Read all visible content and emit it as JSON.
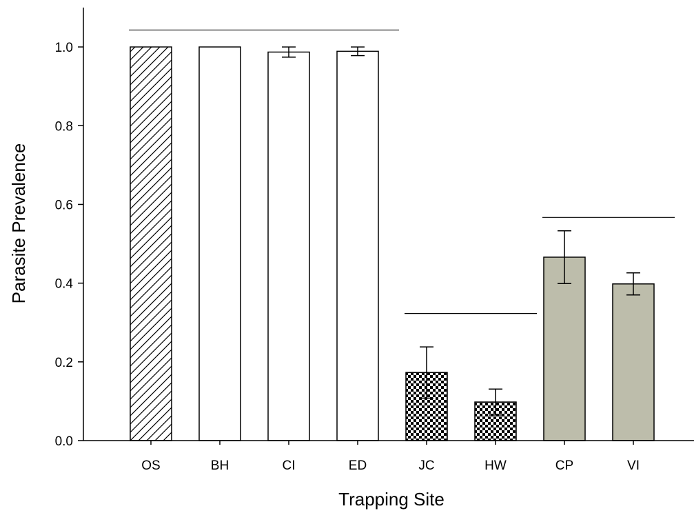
{
  "chart_data": {
    "type": "bar",
    "title": "",
    "xlabel": "Trapping Site",
    "ylabel": "Parasite Prevalence",
    "ylim": [
      0,
      1.1
    ],
    "yticks": [
      "0.0",
      "0.2",
      "0.4",
      "0.6",
      "0.8",
      "1.0"
    ],
    "grid": false,
    "categories": [
      "OS",
      "BH",
      "CI",
      "ED",
      "JC",
      "HW",
      "CP",
      "VI"
    ],
    "values": [
      1.0,
      1.0,
      0.987,
      0.989,
      0.173,
      0.098,
      0.466,
      0.398
    ],
    "errors": [
      null,
      null,
      0.013,
      0.011,
      0.065,
      0.033,
      0.067,
      0.028
    ],
    "fills": [
      "hatch",
      "white",
      "white",
      "white",
      "checker",
      "checker",
      "#bdbdab",
      "#bdbdab"
    ],
    "group_lines": [
      {
        "from": "OS",
        "to": "ED",
        "y": 1.043
      },
      {
        "from": "JC",
        "to": "HW",
        "y": 0.323
      },
      {
        "from": "CP",
        "to": "VI",
        "y": 0.567
      }
    ]
  }
}
